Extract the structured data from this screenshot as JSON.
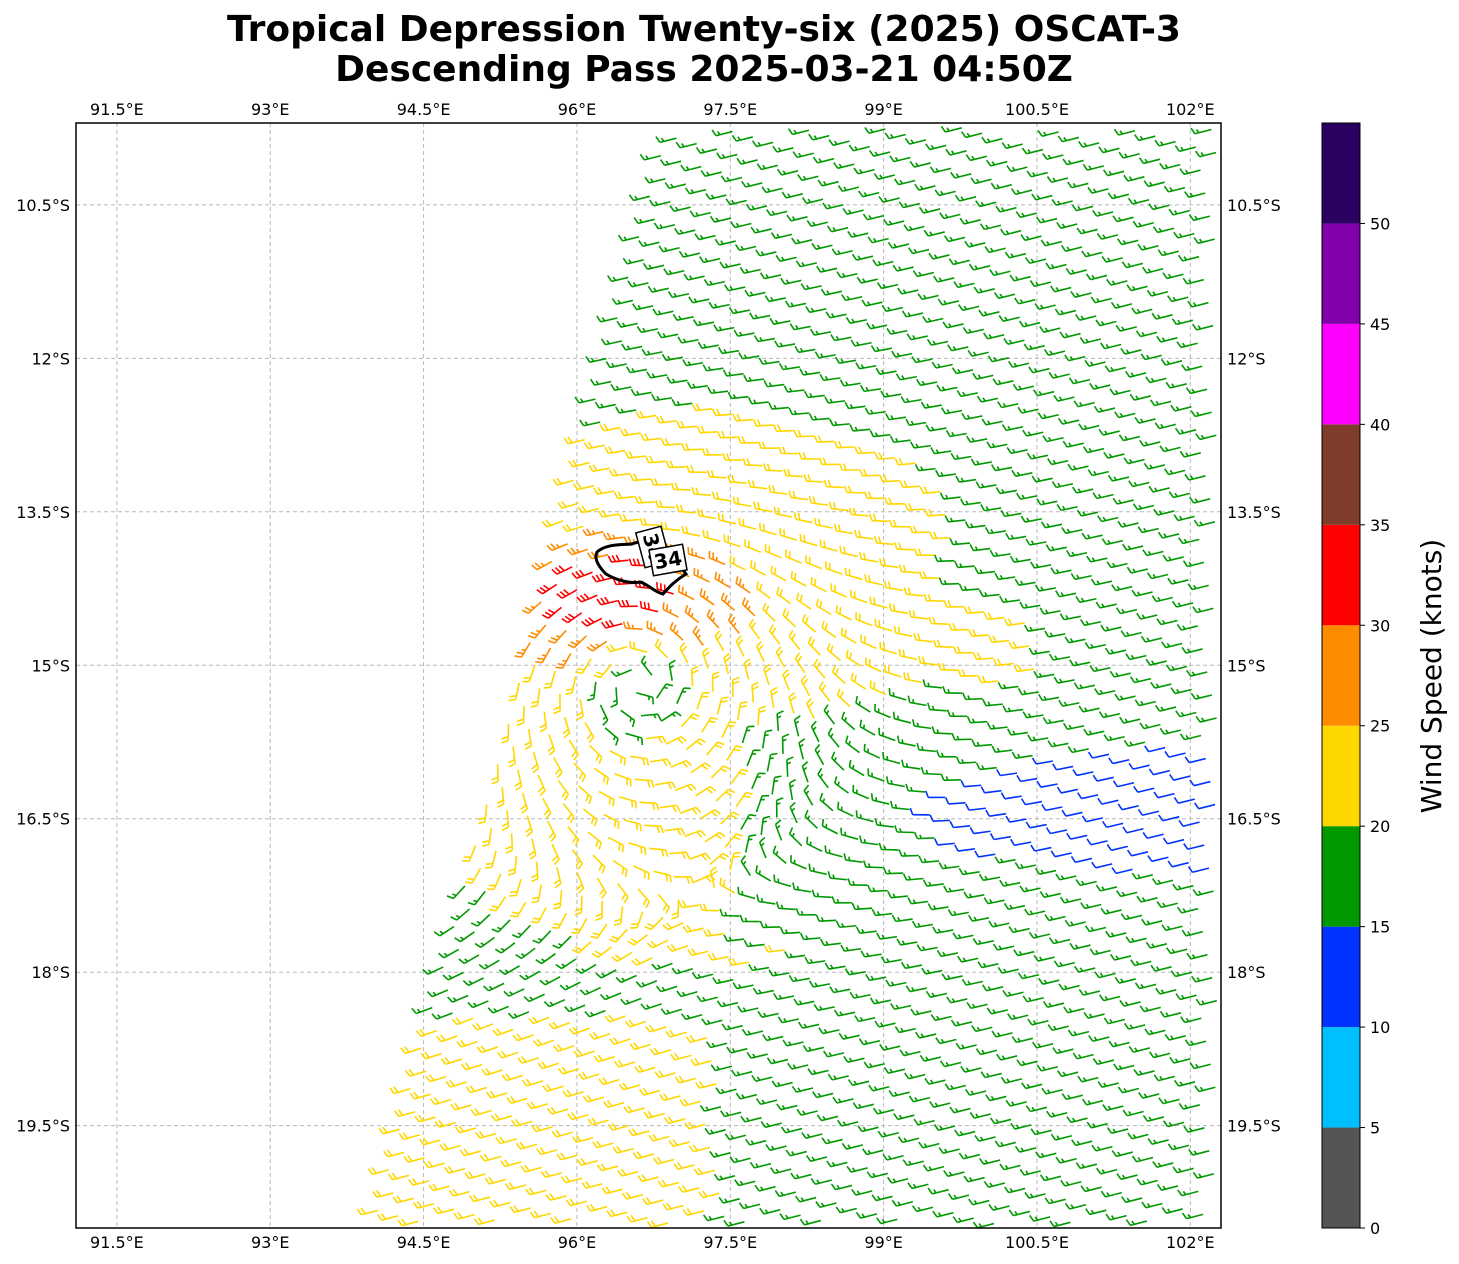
{
  "title": {
    "line1": "Tropical Depression Twenty-six (2025) OSCAT-3",
    "line2": "Descending Pass 2025-03-21 04:50Z"
  },
  "map": {
    "lon_range": [
      91.1,
      102.3
    ],
    "lat_range": [
      -20.5,
      -9.7
    ],
    "lon_ticks": [
      91.5,
      93,
      94.5,
      96,
      97.5,
      99,
      100.5,
      102
    ],
    "lat_ticks": [
      -10.5,
      -12,
      -13.5,
      -15,
      -16.5,
      -18,
      -19.5
    ],
    "lon_tick_labels": [
      "91.5°E",
      "93°E",
      "94.5°E",
      "96°E",
      "97.5°E",
      "99°E",
      "100.5°E",
      "102°E"
    ],
    "lat_tick_labels": [
      "10.5°S",
      "12°S",
      "13.5°S",
      "15°S",
      "16.5°S",
      "18°S",
      "19.5°S"
    ],
    "gridlines": true,
    "swath_edge": {
      "north": {
        "lon": 96.8,
        "lat": -9.7
      },
      "south": {
        "lon": 93.9,
        "lat": -20.5
      }
    },
    "storm_center": {
      "lon": 96.6,
      "lat": -15.2
    },
    "max_wind_center": {
      "lon": 96.3,
      "lat": -14.3
    },
    "contour": {
      "label": "34",
      "labels": [
        "34",
        "34"
      ],
      "color": "#000000"
    }
  },
  "colorbar": {
    "title": "Wind Speed (knots)",
    "ticks": [
      "0",
      "5",
      "10",
      "15",
      "20",
      "25",
      "30",
      "35",
      "40",
      "45",
      "50"
    ],
    "bins": [
      {
        "from": 0,
        "to": 5,
        "color": "#555555"
      },
      {
        "from": 5,
        "to": 10,
        "color": "#00bfff"
      },
      {
        "from": 10,
        "to": 15,
        "color": "#0033ff"
      },
      {
        "from": 15,
        "to": 20,
        "color": "#009900"
      },
      {
        "from": 20,
        "to": 25,
        "color": "#ffd700"
      },
      {
        "from": 25,
        "to": 30,
        "color": "#ff8c00"
      },
      {
        "from": 30,
        "to": 35,
        "color": "#ff0000"
      },
      {
        "from": 35,
        "to": 40,
        "color": "#803c2a"
      },
      {
        "from": 40,
        "to": 45,
        "color": "#ff00ff"
      },
      {
        "from": 45,
        "to": 50,
        "color": "#8000aa"
      },
      {
        "from": 50,
        "to": 55,
        "color": "#2a0060"
      }
    ]
  }
}
